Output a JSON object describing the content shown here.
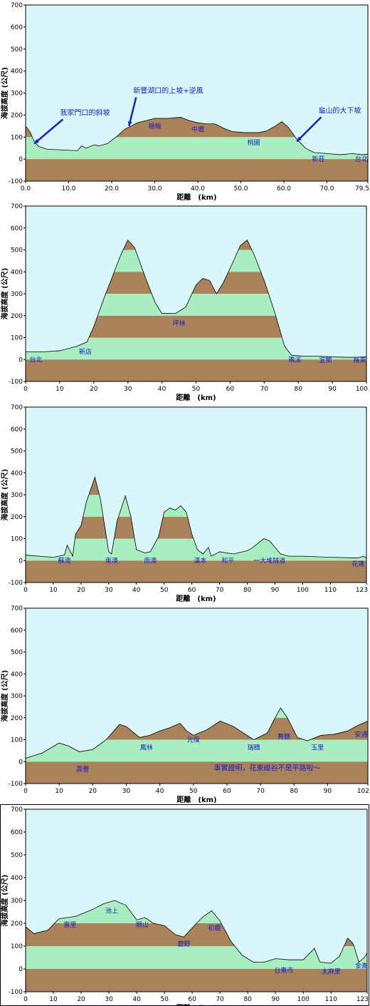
{
  "colors": {
    "sky": "#d9f7fa",
    "green_band": "#a8eec0",
    "brown_band": "#a9825a",
    "outline": "#000000",
    "label_blue": "#1c1cc8",
    "arrow_blue": "#1c1cc8"
  },
  "chart_data": [
    {
      "type": "area",
      "ylabel": "海拔高度 (公尺)",
      "xlabel": "距離　(km)",
      "ylim": [
        -100,
        700
      ],
      "xlim": [
        0,
        79.5
      ],
      "yticks": [
        "-100",
        "0",
        "100",
        "200",
        "300",
        "400",
        "500",
        "600",
        "700"
      ],
      "xticks": [
        {
          "v": 0,
          "label": "0.0"
        },
        {
          "v": 10,
          "label": "10.0"
        },
        {
          "v": 20,
          "label": "20.0"
        },
        {
          "v": 30,
          "label": "30.0"
        },
        {
          "v": 40,
          "label": "40.0"
        },
        {
          "v": 50,
          "label": "50.0"
        },
        {
          "v": 60,
          "label": "60.0"
        },
        {
          "v": 70,
          "label": "70.0"
        },
        {
          "v": 79.5,
          "label": "79.5"
        }
      ],
      "profile": [
        [
          0,
          150
        ],
        [
          1,
          125
        ],
        [
          2,
          80
        ],
        [
          3,
          58
        ],
        [
          5,
          45
        ],
        [
          8,
          42
        ],
        [
          12,
          38
        ],
        [
          13,
          60
        ],
        [
          14,
          50
        ],
        [
          16,
          65
        ],
        [
          17,
          60
        ],
        [
          19,
          70
        ],
        [
          21,
          100
        ],
        [
          23,
          135
        ],
        [
          26,
          165
        ],
        [
          28,
          175
        ],
        [
          30,
          185
        ],
        [
          33,
          185
        ],
        [
          36,
          190
        ],
        [
          38,
          175
        ],
        [
          40,
          165
        ],
        [
          42,
          160
        ],
        [
          44,
          160
        ],
        [
          46,
          140
        ],
        [
          48,
          125
        ],
        [
          51,
          120
        ],
        [
          54,
          120
        ],
        [
          56,
          128
        ],
        [
          58,
          150
        ],
        [
          59.5,
          170
        ],
        [
          61,
          145
        ],
        [
          63,
          90
        ],
        [
          65,
          50
        ],
        [
          67,
          30
        ],
        [
          70,
          25
        ],
        [
          73,
          20
        ],
        [
          76,
          25
        ],
        [
          78,
          20
        ],
        [
          79.5,
          22
        ]
      ],
      "place_labels": [
        {
          "x": 30,
          "y": 140,
          "text": "楊梅"
        },
        {
          "x": 40,
          "y": 125,
          "text": "中壢"
        },
        {
          "x": 53,
          "y": 65,
          "text": "桃園"
        },
        {
          "x": 68,
          "y": -10,
          "text": "新莊"
        },
        {
          "x": 78,
          "y": -10,
          "text": "台北"
        }
      ],
      "annotations": [
        {
          "text": "我家門口的斜坡",
          "tx": 8,
          "ty": 200,
          "ax": 2,
          "ay": 70
        },
        {
          "text": "新豐湖口的上坡+逆風",
          "tx": 25,
          "ty": 300,
          "ax": 24,
          "ay": 150
        },
        {
          "text": "龜山的大下坡",
          "tx": 68,
          "ty": 210,
          "ax": 63,
          "ay": 80
        }
      ]
    },
    {
      "type": "area",
      "ylabel": "海拔高度 (公尺)",
      "xlabel": "距離　(km)",
      "ylim": [
        -100,
        700
      ],
      "xlim": [
        0,
        100
      ],
      "yticks": [
        "-100",
        "0",
        "100",
        "200",
        "300",
        "400",
        "500",
        "600",
        "700"
      ],
      "xticks": [
        {
          "v": 0,
          "label": "0"
        },
        {
          "v": 10,
          "label": "10"
        },
        {
          "v": 20,
          "label": "20"
        },
        {
          "v": 30,
          "label": "30"
        },
        {
          "v": 40,
          "label": "40"
        },
        {
          "v": 50,
          "label": "50"
        },
        {
          "v": 60,
          "label": "60"
        },
        {
          "v": 70,
          "label": "70"
        },
        {
          "v": 80,
          "label": "80"
        },
        {
          "v": 90,
          "label": "90"
        },
        {
          "v": 100,
          "label": "100"
        }
      ],
      "profile": [
        [
          0,
          35
        ],
        [
          5,
          35
        ],
        [
          10,
          40
        ],
        [
          15,
          60
        ],
        [
          18,
          80
        ],
        [
          20,
          150
        ],
        [
          23,
          280
        ],
        [
          26,
          400
        ],
        [
          28,
          480
        ],
        [
          30,
          545
        ],
        [
          32,
          510
        ],
        [
          35,
          380
        ],
        [
          38,
          260
        ],
        [
          40,
          210
        ],
        [
          44,
          210
        ],
        [
          47,
          240
        ],
        [
          50,
          340
        ],
        [
          52,
          370
        ],
        [
          54,
          360
        ],
        [
          56,
          300
        ],
        [
          58,
          350
        ],
        [
          61,
          450
        ],
        [
          63,
          520
        ],
        [
          65,
          545
        ],
        [
          67,
          480
        ],
        [
          70,
          360
        ],
        [
          73,
          220
        ],
        [
          76,
          60
        ],
        [
          78,
          20
        ],
        [
          82,
          15
        ],
        [
          86,
          15
        ],
        [
          90,
          12
        ],
        [
          95,
          10
        ],
        [
          100,
          12
        ]
      ],
      "place_labels": [
        {
          "x": 17.5,
          "y": 25,
          "text": "新店"
        },
        {
          "x": 45,
          "y": 155,
          "text": "坪林"
        },
        {
          "x": 3,
          "y": -10,
          "text": "台北"
        },
        {
          "x": 79,
          "y": -10,
          "text": "礁溪"
        },
        {
          "x": 88,
          "y": -12,
          "text": "宜蘭"
        },
        {
          "x": 98,
          "y": -12,
          "text": "羅東"
        }
      ],
      "annotations": []
    },
    {
      "type": "area",
      "ylabel": "海拔高度 (公尺)",
      "xlabel": "距離　(km)",
      "ylim": [
        -100,
        700
      ],
      "xlim": [
        0,
        123
      ],
      "yticks": [
        "-100",
        "0",
        "100",
        "200",
        "300",
        "400",
        "500",
        "600",
        "700"
      ],
      "xticks": [
        {
          "v": 0,
          "label": "0"
        },
        {
          "v": 10,
          "label": "10"
        },
        {
          "v": 20,
          "label": "20"
        },
        {
          "v": 30,
          "label": "30"
        },
        {
          "v": 40,
          "label": "40"
        },
        {
          "v": 50,
          "label": "50"
        },
        {
          "v": 60,
          "label": "60"
        },
        {
          "v": 70,
          "label": "70"
        },
        {
          "v": 80,
          "label": "80"
        },
        {
          "v": 90,
          "label": "90"
        },
        {
          "v": 100,
          "label": "100"
        },
        {
          "v": 110,
          "label": "110"
        },
        {
          "v": 123,
          "label": "123"
        }
      ],
      "profile": [
        [
          0,
          25
        ],
        [
          5,
          20
        ],
        [
          10,
          15
        ],
        [
          14,
          25
        ],
        [
          15,
          70
        ],
        [
          17,
          20
        ],
        [
          18,
          120
        ],
        [
          20,
          160
        ],
        [
          22,
          270
        ],
        [
          25,
          380
        ],
        [
          27,
          280
        ],
        [
          29,
          120
        ],
        [
          30,
          40
        ],
        [
          31,
          30
        ],
        [
          33,
          180
        ],
        [
          36,
          295
        ],
        [
          38,
          200
        ],
        [
          40,
          50
        ],
        [
          43,
          35
        ],
        [
          45,
          40
        ],
        [
          48,
          110
        ],
        [
          50,
          220
        ],
        [
          52,
          240
        ],
        [
          54,
          230
        ],
        [
          56,
          250
        ],
        [
          58,
          220
        ],
        [
          60,
          120
        ],
        [
          62,
          50
        ],
        [
          64,
          30
        ],
        [
          66,
          60
        ],
        [
          67,
          20
        ],
        [
          70,
          40
        ],
        [
          75,
          30
        ],
        [
          80,
          45
        ],
        [
          82,
          60
        ],
        [
          84,
          80
        ],
        [
          86,
          100
        ],
        [
          88,
          90
        ],
        [
          90,
          60
        ],
        [
          92,
          30
        ],
        [
          95,
          20
        ],
        [
          100,
          20
        ],
        [
          110,
          15
        ],
        [
          120,
          12
        ],
        [
          122,
          20
        ],
        [
          123,
          10
        ]
      ],
      "place_labels": [
        {
          "x": 14,
          "y": -10,
          "text": "蘇澳"
        },
        {
          "x": 31,
          "y": -10,
          "text": "東澳"
        },
        {
          "x": 45,
          "y": -10,
          "text": "南澳"
        },
        {
          "x": 63,
          "y": -10,
          "text": "漢本"
        },
        {
          "x": 73,
          "y": -10,
          "text": "和平"
        },
        {
          "x": 88,
          "y": -10,
          "text": "一大堆隧道"
        },
        {
          "x": 120,
          "y": -25,
          "text": "花蓮"
        }
      ],
      "annotations": []
    },
    {
      "type": "area",
      "ylabel": "海拔高度 (公尺)",
      "xlabel": "距離　(km)",
      "ylim": [
        -100,
        700
      ],
      "xlim": [
        0,
        102
      ],
      "yticks": [
        "-100",
        "0",
        "100",
        "200",
        "300",
        "400",
        "500",
        "600",
        "700"
      ],
      "xticks": [
        {
          "v": 0,
          "label": "0"
        },
        {
          "v": 10,
          "label": "10"
        },
        {
          "v": 20,
          "label": "20"
        },
        {
          "v": 30,
          "label": "30"
        },
        {
          "v": 40,
          "label": "40"
        },
        {
          "v": 50,
          "label": "50"
        },
        {
          "v": 60,
          "label": "60"
        },
        {
          "v": 70,
          "label": "70"
        },
        {
          "v": 80,
          "label": "80"
        },
        {
          "v": 90,
          "label": "90"
        },
        {
          "v": 102,
          "label": "102"
        }
      ],
      "profile": [
        [
          0,
          15
        ],
        [
          5,
          40
        ],
        [
          10,
          85
        ],
        [
          13,
          70
        ],
        [
          16,
          45
        ],
        [
          20,
          55
        ],
        [
          24,
          100
        ],
        [
          28,
          170
        ],
        [
          30,
          160
        ],
        [
          34,
          110
        ],
        [
          37,
          120
        ],
        [
          40,
          140
        ],
        [
          43,
          155
        ],
        [
          46,
          175
        ],
        [
          48,
          140
        ],
        [
          50,
          120
        ],
        [
          54,
          145
        ],
        [
          58,
          185
        ],
        [
          62,
          160
        ],
        [
          65,
          130
        ],
        [
          68,
          100
        ],
        [
          72,
          130
        ],
        [
          74,
          190
        ],
        [
          76,
          245
        ],
        [
          78,
          200
        ],
        [
          81,
          110
        ],
        [
          84,
          95
        ],
        [
          88,
          120
        ],
        [
          92,
          125
        ],
        [
          96,
          140
        ],
        [
          99,
          165
        ],
        [
          102,
          185
        ]
      ],
      "place_labels": [
        {
          "x": 17,
          "y": -45,
          "text": "壽豐"
        },
        {
          "x": 36,
          "y": 55,
          "text": "鳳林"
        },
        {
          "x": 50,
          "y": 90,
          "text": "光復"
        },
        {
          "x": 68,
          "y": 55,
          "text": "瑞穗"
        },
        {
          "x": 77,
          "y": 105,
          "text": "舞鶴"
        },
        {
          "x": 87,
          "y": 55,
          "text": "玉里"
        },
        {
          "x": 100,
          "y": 115,
          "text": "安通"
        }
      ],
      "caption": {
        "x": 72,
        "y": -40,
        "text": "事實證明，花東縱谷不是平路啦～"
      },
      "annotations": []
    },
    {
      "type": "area",
      "ylabel": "海拔高度 (公尺)",
      "xlabel": "距離　(km)",
      "ylim": [
        -100,
        700
      ],
      "xlim": [
        0,
        123
      ],
      "yticks": [
        "-100",
        "0",
        "100",
        "200",
        "300",
        "400",
        "500",
        "600",
        "700"
      ],
      "xticks": [
        {
          "v": 0,
          "label": "0"
        },
        {
          "v": 10,
          "label": "10"
        },
        {
          "v": 20,
          "label": "20"
        },
        {
          "v": 30,
          "label": "30"
        },
        {
          "v": 40,
          "label": "40"
        },
        {
          "v": 50,
          "label": "50"
        },
        {
          "v": 60,
          "label": "60"
        },
        {
          "v": 70,
          "label": "70"
        },
        {
          "v": 80,
          "label": "80"
        },
        {
          "v": 90,
          "label": "90"
        },
        {
          "v": 100,
          "label": "100"
        },
        {
          "v": 110,
          "label": "110"
        },
        {
          "v": 123,
          "label": "123"
        }
      ],
      "profile": [
        [
          0,
          185
        ],
        [
          3,
          155
        ],
        [
          8,
          170
        ],
        [
          12,
          220
        ],
        [
          18,
          230
        ],
        [
          24,
          260
        ],
        [
          28,
          285
        ],
        [
          32,
          300
        ],
        [
          36,
          280
        ],
        [
          40,
          215
        ],
        [
          43,
          225
        ],
        [
          46,
          200
        ],
        [
          50,
          190
        ],
        [
          54,
          150
        ],
        [
          57,
          140
        ],
        [
          60,
          180
        ],
        [
          64,
          230
        ],
        [
          67,
          255
        ],
        [
          70,
          210
        ],
        [
          74,
          120
        ],
        [
          78,
          60
        ],
        [
          82,
          30
        ],
        [
          86,
          30
        ],
        [
          90,
          45
        ],
        [
          95,
          40
        ],
        [
          100,
          40
        ],
        [
          104,
          90
        ],
        [
          106,
          30
        ],
        [
          110,
          25
        ],
        [
          113,
          55
        ],
        [
          116,
          135
        ],
        [
          118,
          110
        ],
        [
          120,
          30
        ],
        [
          122,
          50
        ],
        [
          123,
          70
        ]
      ],
      "place_labels": [
        {
          "x": 31,
          "y": 245,
          "text": "池上"
        },
        {
          "x": 16,
          "y": 185,
          "text": "富里"
        },
        {
          "x": 42,
          "y": 185,
          "text": "關山"
        },
        {
          "x": 57,
          "y": 100,
          "text": "鹿野"
        },
        {
          "x": 68,
          "y": 170,
          "text": "初鹿"
        },
        {
          "x": 93,
          "y": -15,
          "text": "台東市"
        },
        {
          "x": 110,
          "y": -20,
          "text": "太麻里"
        },
        {
          "x": 121,
          "y": 5,
          "text": "金崙"
        }
      ],
      "annotations": []
    }
  ]
}
